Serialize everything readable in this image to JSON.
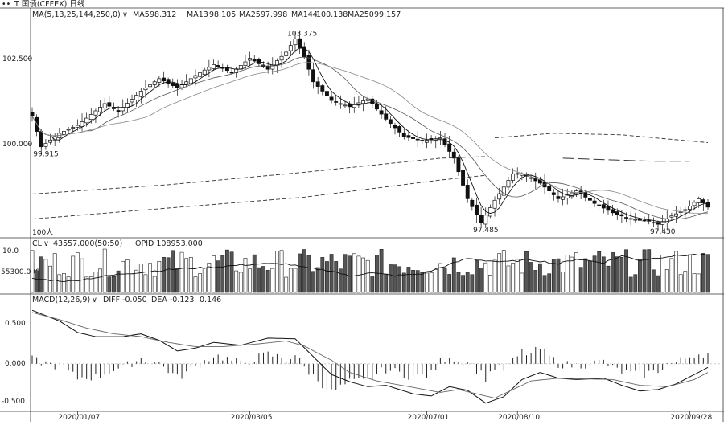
{
  "titlebar": {
    "icon": "dots-icon",
    "title": "T 国债(CFFEX) 日线",
    "badge": "日线"
  },
  "price_panel": {
    "legend": "MA(5,13,25,144,250,0)",
    "ma_values": [
      {
        "name": "MA5",
        "value": "98.312"
      },
      {
        "name": "MA13",
        "value": "98.105"
      },
      {
        "name": "MA25",
        "value": "97.998"
      },
      {
        "name": "MA144",
        "value": "100.138"
      },
      {
        "name": "MA250",
        "value": "99.157"
      }
    ],
    "y_ticks": [
      "102.500",
      "100.000"
    ],
    "markers": [
      {
        "label": "103.375",
        "x_index": 58,
        "value": 103.375
      },
      {
        "label": "99.915",
        "x_index": 2,
        "value": 99.915
      },
      {
        "label": "97.485",
        "x_index": 99,
        "value": 97.485
      },
      {
        "label": "97.430",
        "x_index": 138,
        "value": 97.43
      }
    ],
    "unit_label": "100人"
  },
  "volume_panel": {
    "legend": "CL",
    "vol_text": "43557.000(50:50)",
    "opid_text": "OPID 108953.000",
    "y_ticks": [
      "10.0",
      "55300.000"
    ]
  },
  "macd_panel": {
    "legend": "MACD(12,26,9)",
    "diff": "DIFF -0.050",
    "dea": "DEA -0.123",
    "macd": "0.146",
    "y_ticks": [
      "0.500",
      "0.000",
      "-0.500"
    ]
  },
  "x_axis": {
    "labels": [
      "2020/01/07",
      "2020/03/05",
      "2020/07/01",
      "2020/08/10",
      "2020/09/28"
    ]
  },
  "chart_data": {
    "type": "candlestick",
    "count": 150,
    "x_labels": [
      {
        "index": 10,
        "label": "2020/01/07"
      },
      {
        "index": 48,
        "label": "2020/03/05"
      },
      {
        "index": 87,
        "label": "2020/07/01"
      },
      {
        "index": 107,
        "label": "2020/08/10"
      },
      {
        "index": 145,
        "label": "2020/09/28"
      }
    ],
    "price_anchors": [
      [
        0,
        100.9
      ],
      [
        2,
        99.915
      ],
      [
        6,
        100.35
      ],
      [
        10,
        100.6
      ],
      [
        16,
        101.3
      ],
      [
        19,
        101.05
      ],
      [
        24,
        101.7
      ],
      [
        28,
        102.1
      ],
      [
        32,
        101.8
      ],
      [
        36,
        102.2
      ],
      [
        40,
        102.55
      ],
      [
        44,
        102.3
      ],
      [
        48,
        102.75
      ],
      [
        52,
        102.4
      ],
      [
        56,
        102.95
      ],
      [
        58,
        103.375
      ],
      [
        60,
        102.8
      ],
      [
        62,
        102.0
      ],
      [
        66,
        101.4
      ],
      [
        70,
        101.2
      ],
      [
        74,
        101.45
      ],
      [
        78,
        100.8
      ],
      [
        82,
        100.25
      ],
      [
        86,
        100.1
      ],
      [
        90,
        100.2
      ],
      [
        93,
        99.55
      ],
      [
        96,
        98.25
      ],
      [
        99,
        97.485
      ],
      [
        102,
        98.2
      ],
      [
        106,
        99.05
      ],
      [
        108,
        99.05
      ],
      [
        112,
        98.75
      ],
      [
        116,
        98.25
      ],
      [
        120,
        98.5
      ],
      [
        124,
        98.1
      ],
      [
        128,
        97.8
      ],
      [
        132,
        97.6
      ],
      [
        136,
        97.55
      ],
      [
        138,
        97.43
      ],
      [
        141,
        97.7
      ],
      [
        144,
        97.9
      ],
      [
        147,
        98.25
      ],
      [
        149,
        97.98
      ]
    ],
    "price_ylim": [
      97.1,
      103.9
    ],
    "ma144_points": [
      [
        0,
        98.4
      ],
      [
        30,
        98.7
      ],
      [
        60,
        99.1
      ],
      [
        90,
        99.55
      ],
      [
        100,
        99.6
      ]
    ],
    "ma250_points": [
      [
        0,
        97.6
      ],
      [
        30,
        97.95
      ],
      [
        60,
        98.3
      ],
      [
        90,
        98.85
      ],
      [
        100,
        99.0
      ]
    ],
    "ma_upper_points": [
      [
        102,
        100.2
      ],
      [
        115,
        100.35
      ],
      [
        130,
        100.3
      ],
      [
        149,
        100.05
      ]
    ],
    "ma_dashed_points": [
      [
        117,
        99.55
      ],
      [
        137,
        99.45
      ],
      [
        145,
        99.45
      ]
    ],
    "volume_max": 100,
    "oi_ylim": [
      40,
      110
    ],
    "oi_anchors": [
      [
        0,
        62
      ],
      [
        8,
        58
      ],
      [
        14,
        64
      ],
      [
        20,
        70
      ],
      [
        26,
        74
      ],
      [
        32,
        78
      ],
      [
        38,
        80
      ],
      [
        44,
        83
      ],
      [
        50,
        86
      ],
      [
        56,
        86
      ],
      [
        60,
        80
      ],
      [
        66,
        75
      ],
      [
        70,
        66
      ],
      [
        74,
        72
      ],
      [
        80,
        67
      ],
      [
        86,
        70
      ],
      [
        90,
        80
      ],
      [
        96,
        95
      ],
      [
        98,
        93
      ],
      [
        104,
        89
      ],
      [
        110,
        93
      ],
      [
        116,
        86
      ],
      [
        120,
        94
      ],
      [
        126,
        88
      ],
      [
        130,
        99
      ],
      [
        134,
        92
      ],
      [
        140,
        98
      ],
      [
        146,
        101
      ],
      [
        149,
        100
      ]
    ],
    "macd_ylim": [
      -0.62,
      0.82
    ],
    "diff_anchors": [
      [
        0,
        0.75
      ],
      [
        6,
        0.6
      ],
      [
        10,
        0.44
      ],
      [
        14,
        0.38
      ],
      [
        20,
        0.38
      ],
      [
        24,
        0.42
      ],
      [
        28,
        0.33
      ],
      [
        32,
        0.18
      ],
      [
        36,
        0.22
      ],
      [
        40,
        0.3
      ],
      [
        46,
        0.26
      ],
      [
        52,
        0.36
      ],
      [
        58,
        0.35
      ],
      [
        62,
        0.1
      ],
      [
        66,
        -0.15
      ],
      [
        70,
        -0.25
      ],
      [
        74,
        -0.32
      ],
      [
        78,
        -0.3
      ],
      [
        84,
        -0.42
      ],
      [
        88,
        -0.45
      ],
      [
        92,
        -0.32
      ],
      [
        96,
        -0.37
      ],
      [
        100,
        -0.55
      ],
      [
        104,
        -0.46
      ],
      [
        108,
        -0.22
      ],
      [
        112,
        -0.12
      ],
      [
        116,
        -0.2
      ],
      [
        120,
        -0.22
      ],
      [
        126,
        -0.2
      ],
      [
        130,
        -0.3
      ],
      [
        134,
        -0.38
      ],
      [
        138,
        -0.36
      ],
      [
        142,
        -0.28
      ],
      [
        146,
        -0.15
      ],
      [
        149,
        -0.05
      ]
    ],
    "dea_anchors": [
      [
        0,
        0.72
      ],
      [
        6,
        0.62
      ],
      [
        12,
        0.5
      ],
      [
        18,
        0.42
      ],
      [
        24,
        0.38
      ],
      [
        30,
        0.3
      ],
      [
        36,
        0.24
      ],
      [
        42,
        0.24
      ],
      [
        50,
        0.28
      ],
      [
        56,
        0.32
      ],
      [
        60,
        0.25
      ],
      [
        66,
        0.05
      ],
      [
        70,
        -0.12
      ],
      [
        76,
        -0.24
      ],
      [
        84,
        -0.33
      ],
      [
        90,
        -0.4
      ],
      [
        94,
        -0.36
      ],
      [
        98,
        -0.42
      ],
      [
        102,
        -0.48
      ],
      [
        106,
        -0.36
      ],
      [
        110,
        -0.24
      ],
      [
        116,
        -0.2
      ],
      [
        122,
        -0.21
      ],
      [
        128,
        -0.22
      ],
      [
        134,
        -0.3
      ],
      [
        140,
        -0.32
      ],
      [
        146,
        -0.22
      ],
      [
        149,
        -0.12
      ]
    ]
  }
}
